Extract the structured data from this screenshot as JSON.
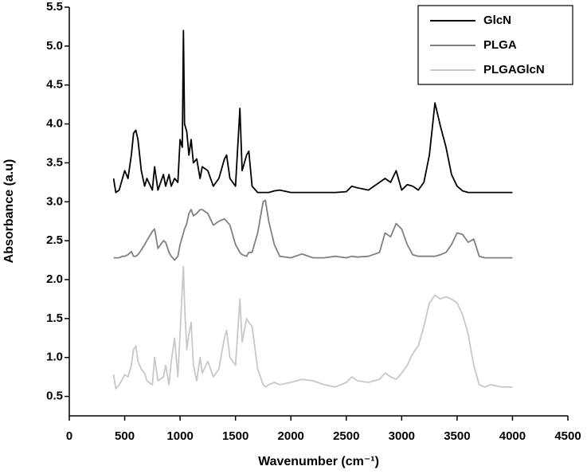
{
  "chart_data": {
    "type": "line",
    "xlabel": "Wavenumber (cm⁻¹)",
    "ylabel": "Absorbance (a.u)",
    "xlim": [
      0,
      4500
    ],
    "ylim": [
      0.25,
      5.5
    ],
    "xticks": [
      0,
      500,
      1000,
      1500,
      2000,
      2500,
      3000,
      3500,
      4000,
      4500
    ],
    "yticks": [
      0.5,
      {
        "value": 1,
        "label": "1.0"
      },
      1.5,
      {
        "value": 2,
        "label": "2.0"
      },
      2.5,
      {
        "value": 3,
        "label": "3.0"
      },
      3.5,
      {
        "value": 4,
        "label": "4.0"
      },
      4.5,
      {
        "value": 5,
        "label": "5.0"
      },
      5.5
    ],
    "legend": "upper right",
    "x": [
      400,
      420,
      450,
      480,
      500,
      530,
      560,
      580,
      600,
      620,
      650,
      680,
      700,
      750,
      770,
      800,
      850,
      870,
      900,
      920,
      950,
      980,
      1000,
      1020,
      1030,
      1040,
      1060,
      1080,
      1100,
      1120,
      1150,
      1180,
      1200,
      1250,
      1300,
      1350,
      1400,
      1420,
      1450,
      1500,
      1540,
      1560,
      1600,
      1620,
      1650,
      1700,
      1750,
      1770,
      1800,
      1850,
      1900,
      2000,
      2100,
      2200,
      2300,
      2400,
      2500,
      2550,
      2600,
      2700,
      2800,
      2850,
      2900,
      2950,
      3000,
      3050,
      3100,
      3150,
      3200,
      3250,
      3300,
      3350,
      3400,
      3450,
      3500,
      3550,
      3600,
      3650,
      3700,
      3750,
      3800,
      3900,
      4000
    ],
    "series": [
      {
        "name": "GlcN",
        "color": "#000000",
        "values": [
          3.3,
          3.12,
          3.15,
          3.3,
          3.4,
          3.3,
          3.6,
          3.88,
          3.92,
          3.8,
          3.4,
          3.2,
          3.3,
          3.15,
          3.45,
          3.15,
          3.35,
          3.2,
          3.35,
          3.2,
          3.3,
          3.25,
          3.8,
          3.7,
          5.2,
          4.0,
          3.9,
          3.6,
          3.8,
          3.5,
          3.55,
          3.3,
          3.45,
          3.4,
          3.2,
          3.3,
          3.55,
          3.6,
          3.3,
          3.2,
          4.2,
          3.4,
          3.6,
          3.65,
          3.2,
          3.12,
          3.12,
          3.12,
          3.12,
          3.14,
          3.15,
          3.12,
          3.12,
          3.12,
          3.12,
          3.12,
          3.13,
          3.2,
          3.18,
          3.15,
          3.25,
          3.3,
          3.25,
          3.4,
          3.15,
          3.22,
          3.2,
          3.15,
          3.25,
          3.6,
          4.27,
          3.97,
          3.7,
          3.35,
          3.2,
          3.14,
          3.12,
          3.12,
          3.12,
          3.12,
          3.12,
          3.12,
          3.12
        ]
      },
      {
        "name": "PLGA",
        "color": "#808080",
        "values": [
          2.28,
          2.28,
          2.28,
          2.3,
          2.3,
          2.32,
          2.36,
          2.3,
          2.3,
          2.32,
          2.38,
          2.45,
          2.5,
          2.62,
          2.65,
          2.4,
          2.5,
          2.48,
          2.35,
          2.3,
          2.25,
          2.3,
          2.45,
          2.55,
          2.6,
          2.65,
          2.72,
          2.85,
          2.9,
          2.82,
          2.85,
          2.9,
          2.9,
          2.85,
          2.7,
          2.75,
          2.78,
          2.75,
          2.7,
          2.45,
          2.35,
          2.32,
          2.3,
          2.35,
          2.35,
          2.6,
          3.0,
          3.02,
          2.75,
          2.45,
          2.3,
          2.28,
          2.33,
          2.28,
          2.28,
          2.3,
          2.28,
          2.3,
          2.29,
          2.3,
          2.35,
          2.6,
          2.55,
          2.72,
          2.65,
          2.45,
          2.32,
          2.3,
          2.3,
          2.3,
          2.3,
          2.32,
          2.35,
          2.45,
          2.6,
          2.58,
          2.48,
          2.52,
          2.3,
          2.28,
          2.28,
          2.28,
          2.28
        ]
      },
      {
        "name": "PLGAGlcN",
        "color": "#c8c8c8",
        "values": [
          0.78,
          0.6,
          0.65,
          0.72,
          0.78,
          0.75,
          0.9,
          1.1,
          1.15,
          0.95,
          0.85,
          0.8,
          0.7,
          0.65,
          1.0,
          0.7,
          0.75,
          0.9,
          0.65,
          0.95,
          1.25,
          0.75,
          1.3,
          1.9,
          2.17,
          1.7,
          1.1,
          1.3,
          1.45,
          0.9,
          0.7,
          1.0,
          0.8,
          0.95,
          0.75,
          0.85,
          1.25,
          1.35,
          1.0,
          0.9,
          1.75,
          1.2,
          1.5,
          1.45,
          1.4,
          0.85,
          0.65,
          0.62,
          0.65,
          0.68,
          0.65,
          0.68,
          0.72,
          0.7,
          0.65,
          0.62,
          0.68,
          0.75,
          0.7,
          0.68,
          0.72,
          0.8,
          0.75,
          0.72,
          0.8,
          0.9,
          1.05,
          1.15,
          1.4,
          1.7,
          1.8,
          1.75,
          1.78,
          1.75,
          1.7,
          1.55,
          1.3,
          0.9,
          0.65,
          0.62,
          0.65,
          0.62,
          0.62
        ]
      }
    ]
  }
}
